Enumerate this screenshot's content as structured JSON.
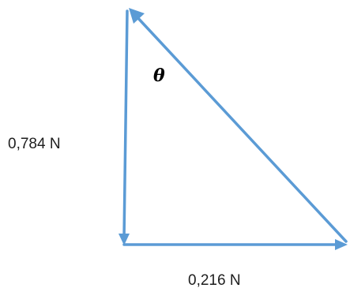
{
  "diagram": {
    "angle_symbol": "θ",
    "vertical_force_label": "0,784 N",
    "horizontal_force_label": "0,216 N"
  },
  "colors": {
    "vector": "#5b9bd5",
    "text": "#1e1e1e"
  }
}
